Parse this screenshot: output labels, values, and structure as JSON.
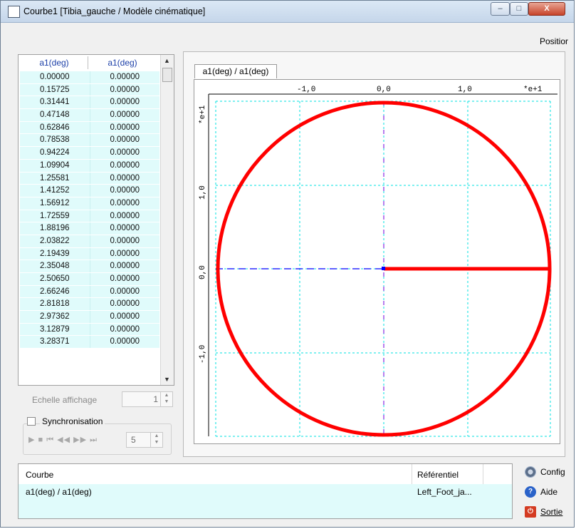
{
  "window": {
    "title": "Courbe1 [Tibia_gauche / Modèle cinématique]",
    "close_label": "X",
    "minimize_label": "–",
    "maximize_label": "□"
  },
  "position_label": "Positior",
  "table": {
    "headers": [
      "a1(deg)",
      "a1(deg)"
    ],
    "rows": [
      [
        "0.00000",
        "0.00000"
      ],
      [
        "0.15725",
        "0.00000"
      ],
      [
        "0.31441",
        "0.00000"
      ],
      [
        "0.47148",
        "0.00000"
      ],
      [
        "0.62846",
        "0.00000"
      ],
      [
        "0.78538",
        "0.00000"
      ],
      [
        "0.94224",
        "0.00000"
      ],
      [
        "1.09904",
        "0.00000"
      ],
      [
        "1.25581",
        "0.00000"
      ],
      [
        "1.41252",
        "0.00000"
      ],
      [
        "1.56912",
        "0.00000"
      ],
      [
        "1.72559",
        "0.00000"
      ],
      [
        "1.88196",
        "0.00000"
      ],
      [
        "2.03822",
        "0.00000"
      ],
      [
        "2.19439",
        "0.00000"
      ],
      [
        "2.35048",
        "0.00000"
      ],
      [
        "2.50650",
        "0.00000"
      ],
      [
        "2.66246",
        "0.00000"
      ],
      [
        "2.81818",
        "0.00000"
      ],
      [
        "2.97362",
        "0.00000"
      ],
      [
        "3.12879",
        "0.00000"
      ],
      [
        "3.28371",
        "0.00000"
      ]
    ]
  },
  "echelle": {
    "label": "Echelle affichage",
    "value": "1"
  },
  "sync": {
    "label": "Synchronisation",
    "media_controls": "▶ ■  ⏮ ◀◀ ▶▶ ⏭",
    "value": "5"
  },
  "plot": {
    "tab_label": "a1(deg) / a1(deg)",
    "x_ticks": [
      "-1,0",
      "0,0",
      "1,0"
    ],
    "x_multiplier": "*e+1",
    "y_ticks": [
      "1,0",
      "0,0",
      "-1,0"
    ],
    "y_multiplier": "*e+1"
  },
  "bottom": {
    "header_courbe": "Courbe",
    "header_ref": "Référentiel",
    "row_courbe": "a1(deg) / a1(deg)",
    "row_ref": "Left_Foot_ja..."
  },
  "buttons": {
    "config": "Config",
    "aide": "Aide",
    "sortie": "Sortie"
  },
  "colors": {
    "curve": "#ff0000",
    "grid": "#00e0e0",
    "axis": "#0000ff"
  }
}
